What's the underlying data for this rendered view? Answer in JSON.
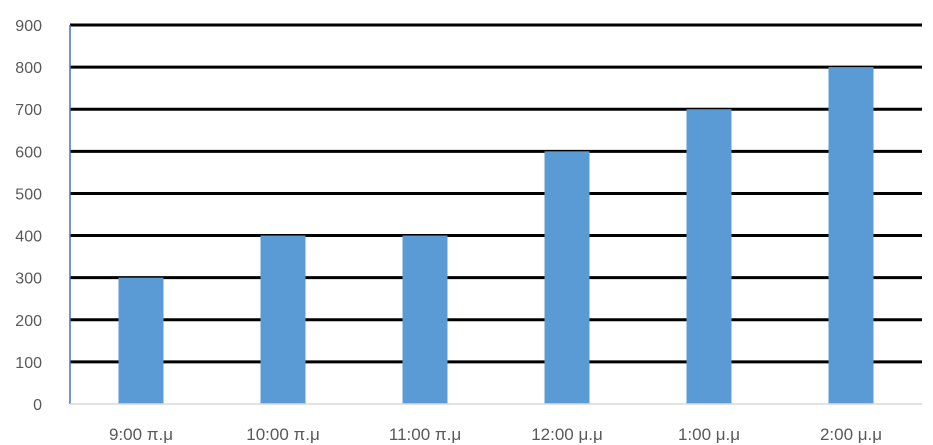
{
  "chart_data": {
    "type": "bar",
    "categories": [
      "9:00 π.μ",
      "10:00 π.μ",
      "11:00 π.μ",
      "12:00 μ.μ",
      "1:00 μ.μ",
      "2:00 μ.μ"
    ],
    "values": [
      300,
      400,
      400,
      600,
      700,
      800
    ],
    "ylim": [
      0,
      900
    ],
    "yticks": [
      0,
      100,
      200,
      300,
      400,
      500,
      600,
      700,
      800,
      900
    ],
    "title": "",
    "xlabel": "",
    "ylabel": "",
    "grid": true,
    "legend": "none",
    "colors": {
      "bar": "#5B9BD5",
      "grid": "#000000",
      "axis": "#4472C4",
      "text": "#595959"
    }
  }
}
